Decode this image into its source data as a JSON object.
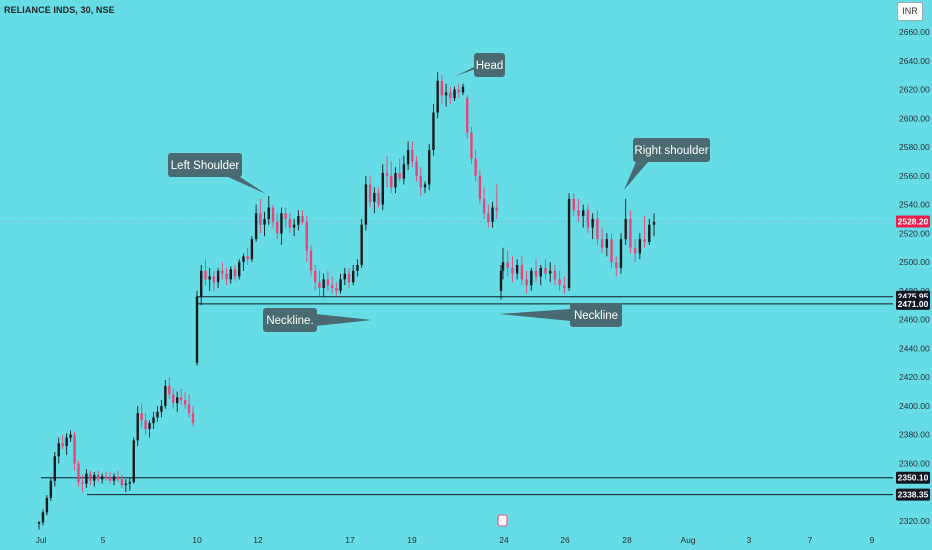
{
  "header": {
    "symbol": "RELIANCE INDS, 30, NSE",
    "currency": "INR"
  },
  "chart_data": {
    "type": "candlestick",
    "ylim": [
      2315,
      2670
    ],
    "y_ticks": [
      2320,
      2340,
      2360,
      2380,
      2400,
      2420,
      2440,
      2460,
      2480,
      2500,
      2520,
      2540,
      2560,
      2580,
      2600,
      2620,
      2640,
      2660
    ],
    "x_ticks": [
      "Jul",
      "5",
      "10",
      "12",
      "17",
      "19",
      "24",
      "26",
      "28",
      "Aug",
      "3",
      "7",
      "9"
    ],
    "last_price": 2528.2,
    "levels": [
      2475.95,
      2471.0,
      2350.1,
      2338.35
    ],
    "annotations": [
      "Head",
      "Left Shoulder",
      "Right shoulder",
      "Neckline.",
      "Neckline"
    ],
    "colors": {
      "up": "#1a1a1a",
      "down": "#e8447a",
      "price_badge": "#e91e4c",
      "level_badge": "#131722",
      "callout": "#4a6a72"
    },
    "candles": [
      [
        2318,
        2320,
        2314,
        2319
      ],
      [
        2319,
        2328,
        2317,
        2326
      ],
      [
        2326,
        2338,
        2324,
        2336
      ],
      [
        2336,
        2350,
        2334,
        2348
      ],
      [
        2348,
        2368,
        2344,
        2365
      ],
      [
        2365,
        2378,
        2360,
        2374
      ],
      [
        2374,
        2380,
        2370,
        2372
      ],
      [
        2372,
        2381,
        2366,
        2378
      ],
      [
        2378,
        2383,
        2375,
        2380
      ],
      [
        2380,
        2382,
        2355,
        2360
      ],
      [
        2360,
        2362,
        2344,
        2347
      ],
      [
        2347,
        2352,
        2340,
        2346
      ],
      [
        2346,
        2356,
        2343,
        2353
      ],
      [
        2353,
        2355,
        2345,
        2348
      ],
      [
        2348,
        2354,
        2344,
        2352
      ],
      [
        2352,
        2355,
        2347,
        2349
      ],
      [
        2349,
        2353,
        2346,
        2351
      ],
      [
        2351,
        2354,
        2348,
        2350
      ],
      [
        2350,
        2354,
        2346,
        2348
      ],
      [
        2348,
        2353,
        2345,
        2351
      ],
      [
        2351,
        2355,
        2347,
        2349
      ],
      [
        2349,
        2352,
        2343,
        2345
      ],
      [
        2345,
        2349,
        2340,
        2346
      ],
      [
        2346,
        2350,
        2341,
        2347
      ],
      [
        2347,
        2378,
        2346,
        2376
      ],
      [
        2376,
        2400,
        2372,
        2395
      ],
      [
        2395,
        2402,
        2385,
        2390
      ],
      [
        2390,
        2395,
        2380,
        2384
      ],
      [
        2384,
        2390,
        2378,
        2388
      ],
      [
        2388,
        2396,
        2384,
        2392
      ],
      [
        2392,
        2400,
        2389,
        2396
      ],
      [
        2396,
        2404,
        2392,
        2400
      ],
      [
        2400,
        2418,
        2398,
        2414
      ],
      [
        2414,
        2420,
        2405,
        2408
      ],
      [
        2408,
        2412,
        2398,
        2402
      ],
      [
        2402,
        2410,
        2396,
        2406
      ],
      [
        2406,
        2412,
        2401,
        2404
      ],
      [
        2404,
        2410,
        2398,
        2401
      ],
      [
        2401,
        2408,
        2392,
        2395
      ],
      [
        2395,
        2400,
        2386,
        2388
      ],
      [
        2430,
        2480,
        2428,
        2476
      ],
      [
        2476,
        2498,
        2470,
        2494
      ],
      [
        2494,
        2502,
        2484,
        2488
      ],
      [
        2488,
        2496,
        2480,
        2490
      ],
      [
        2490,
        2494,
        2480,
        2486
      ],
      [
        2486,
        2496,
        2482,
        2494
      ],
      [
        2494,
        2500,
        2488,
        2492
      ],
      [
        2492,
        2496,
        2484,
        2488
      ],
      [
        2488,
        2497,
        2485,
        2495
      ],
      [
        2495,
        2498,
        2487,
        2490
      ],
      [
        2490,
        2502,
        2488,
        2500
      ],
      [
        2500,
        2506,
        2494,
        2504
      ],
      [
        2504,
        2510,
        2498,
        2502
      ],
      [
        2502,
        2518,
        2500,
        2516
      ],
      [
        2516,
        2540,
        2514,
        2534
      ],
      [
        2534,
        2544,
        2520,
        2526
      ],
      [
        2526,
        2535,
        2518,
        2530
      ],
      [
        2530,
        2546,
        2526,
        2538
      ],
      [
        2538,
        2540,
        2524,
        2528
      ],
      [
        2528,
        2534,
        2516,
        2520
      ],
      [
        2520,
        2538,
        2512,
        2534
      ],
      [
        2534,
        2538,
        2524,
        2530
      ],
      [
        2530,
        2534,
        2520,
        2524
      ],
      [
        2524,
        2530,
        2518,
        2526
      ],
      [
        2526,
        2536,
        2522,
        2532
      ],
      [
        2532,
        2536,
        2526,
        2528
      ],
      [
        2528,
        2532,
        2500,
        2508
      ],
      [
        2508,
        2512,
        2490,
        2494
      ],
      [
        2494,
        2498,
        2480,
        2486
      ],
      [
        2486,
        2494,
        2476,
        2482
      ],
      [
        2482,
        2492,
        2476,
        2488
      ],
      [
        2488,
        2494,
        2480,
        2484
      ],
      [
        2484,
        2490,
        2478,
        2482
      ],
      [
        2482,
        2486,
        2476,
        2480
      ],
      [
        2480,
        2492,
        2478,
        2488
      ],
      [
        2488,
        2496,
        2484,
        2492
      ],
      [
        2492,
        2496,
        2482,
        2486
      ],
      [
        2486,
        2498,
        2484,
        2494
      ],
      [
        2494,
        2502,
        2490,
        2498
      ],
      [
        2498,
        2530,
        2496,
        2526
      ],
      [
        2526,
        2560,
        2522,
        2554
      ],
      [
        2554,
        2560,
        2538,
        2542
      ],
      [
        2542,
        2552,
        2534,
        2548
      ],
      [
        2548,
        2552,
        2538,
        2540
      ],
      [
        2540,
        2568,
        2536,
        2562
      ],
      [
        2562,
        2574,
        2552,
        2560
      ],
      [
        2560,
        2570,
        2548,
        2552
      ],
      [
        2552,
        2566,
        2548,
        2562
      ],
      [
        2562,
        2572,
        2556,
        2558
      ],
      [
        2558,
        2574,
        2554,
        2568
      ],
      [
        2568,
        2584,
        2564,
        2578
      ],
      [
        2578,
        2584,
        2566,
        2570
      ],
      [
        2570,
        2574,
        2556,
        2560
      ],
      [
        2560,
        2566,
        2546,
        2552
      ],
      [
        2552,
        2556,
        2548,
        2554
      ],
      [
        2554,
        2582,
        2550,
        2578
      ],
      [
        2578,
        2610,
        2574,
        2604
      ],
      [
        2604,
        2632,
        2600,
        2626
      ],
      [
        2626,
        2630,
        2610,
        2616
      ],
      [
        2616,
        2624,
        2608,
        2618
      ],
      [
        2618,
        2622,
        2610,
        2614
      ],
      [
        2614,
        2622,
        2612,
        2620
      ],
      [
        2620,
        2624,
        2614,
        2618
      ],
      [
        2618,
        2624,
        2616,
        2622
      ],
      [
        2614,
        2616,
        2586,
        2590
      ],
      [
        2590,
        2594,
        2568,
        2572
      ],
      [
        2572,
        2578,
        2556,
        2560
      ],
      [
        2560,
        2564,
        2540,
        2544
      ],
      [
        2544,
        2552,
        2530,
        2534
      ],
      [
        2534,
        2540,
        2524,
        2528
      ],
      [
        2528,
        2542,
        2524,
        2538
      ],
      [
        2538,
        2554,
        2530,
        2536
      ],
      [
        2480,
        2498,
        2474,
        2494
      ],
      [
        2494,
        2510,
        2488,
        2500
      ],
      [
        2500,
        2508,
        2490,
        2496
      ],
      [
        2496,
        2504,
        2486,
        2492
      ],
      [
        2492,
        2502,
        2488,
        2498
      ],
      [
        2498,
        2504,
        2484,
        2488
      ],
      [
        2488,
        2494,
        2478,
        2484
      ],
      [
        2484,
        2496,
        2480,
        2494
      ],
      [
        2494,
        2502,
        2486,
        2490
      ],
      [
        2490,
        2498,
        2484,
        2496
      ],
      [
        2496,
        2502,
        2488,
        2492
      ],
      [
        2492,
        2500,
        2486,
        2494
      ],
      [
        2494,
        2498,
        2484,
        2488
      ],
      [
        2488,
        2494,
        2480,
        2484
      ],
      [
        2484,
        2490,
        2478,
        2482
      ],
      [
        2482,
        2548,
        2480,
        2544
      ],
      [
        2544,
        2548,
        2532,
        2536
      ],
      [
        2536,
        2544,
        2528,
        2532
      ],
      [
        2532,
        2540,
        2524,
        2536
      ],
      [
        2536,
        2540,
        2520,
        2524
      ],
      [
        2524,
        2534,
        2516,
        2530
      ],
      [
        2530,
        2536,
        2512,
        2516
      ],
      [
        2516,
        2524,
        2506,
        2510
      ],
      [
        2510,
        2520,
        2504,
        2516
      ],
      [
        2516,
        2520,
        2496,
        2500
      ],
      [
        2500,
        2504,
        2490,
        2496
      ],
      [
        2496,
        2520,
        2492,
        2516
      ],
      [
        2516,
        2544,
        2512,
        2530
      ],
      [
        2530,
        2536,
        2506,
        2510
      ],
      [
        2510,
        2516,
        2500,
        2506
      ],
      [
        2506,
        2520,
        2502,
        2516
      ],
      [
        2516,
        2532,
        2510,
        2514
      ],
      [
        2514,
        2530,
        2512,
        2526
      ],
      [
        2526,
        2534,
        2518,
        2528
      ]
    ]
  }
}
